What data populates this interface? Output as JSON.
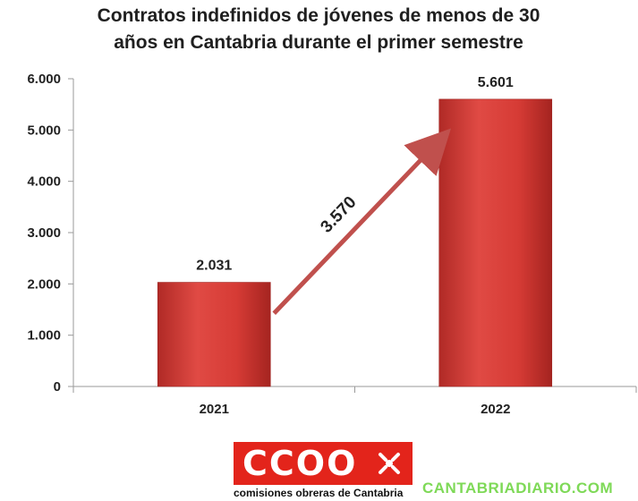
{
  "chart_data": {
    "type": "bar",
    "title_lines": [
      "Contratos indefinidos de jóvenes de menos de 30",
      "años en Cantabria durante el primer semestre"
    ],
    "categories": [
      "2021",
      "2022"
    ],
    "values": [
      2031,
      5601
    ],
    "data_labels": [
      "2.031",
      "5.601"
    ],
    "y_ticks": [
      0,
      1000,
      2000,
      3000,
      4000,
      5000,
      6000
    ],
    "y_tick_labels": [
      "0",
      "1.000",
      "2.000",
      "3.000",
      "4.000",
      "5.000",
      "6.000"
    ],
    "ylim": [
      0,
      6000
    ],
    "grid": false,
    "bar_color": "#d83a35",
    "annotation": {
      "label": "3.570",
      "from_category": "2021",
      "to_category": "2022",
      "color": "#c0504d"
    }
  },
  "logo": {
    "word": "CCOO",
    "caption": "comisiones obreras de Cantabria",
    "color": "#e3241b"
  },
  "watermark": {
    "text": "CANTABRIADIARIO.COM",
    "color": "#7ed957"
  }
}
